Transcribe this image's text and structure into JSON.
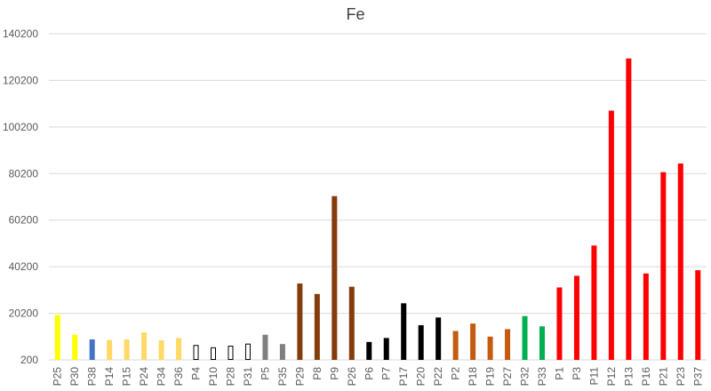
{
  "chart_data": {
    "type": "bar",
    "title": "Fe",
    "xlabel": "",
    "ylabel": "",
    "ylim": [
      200,
      140200
    ],
    "yticks": [
      200,
      20200,
      40200,
      60200,
      80200,
      100200,
      120200,
      140200
    ],
    "grid": true,
    "legend": "none",
    "categories": [
      "P25",
      "P30",
      "P38",
      "P14",
      "P15",
      "P24",
      "P34",
      "P36",
      "P4",
      "P10",
      "P28",
      "P31",
      "P5",
      "P35",
      "P29",
      "P8",
      "P9",
      "P26",
      "P6",
      "P7",
      "P17",
      "P20",
      "P22",
      "P2",
      "P18",
      "P19",
      "P27",
      "P32",
      "P33",
      "P1",
      "P3",
      "P11",
      "P12",
      "P13",
      "P16",
      "P21",
      "P23",
      "P37"
    ],
    "values": [
      19500,
      11000,
      9000,
      8800,
      9000,
      12000,
      8600,
      9600,
      6400,
      5400,
      6100,
      7000,
      11000,
      7000,
      33000,
      28500,
      70500,
      31600,
      7900,
      9600,
      24500,
      15100,
      18400,
      12600,
      15800,
      10200,
      13400,
      19000,
      14600,
      31300,
      36300,
      49300,
      107200,
      129600,
      37300,
      80800,
      84500,
      38700
    ],
    "colors": [
      "#ffff00",
      "#ffff00",
      "#4472c4",
      "#ffd966",
      "#ffd966",
      "#ffd966",
      "#ffd966",
      "#ffd966",
      "#ffffff",
      "#ffffff",
      "#ffffff",
      "#ffffff",
      "#7f7f7f",
      "#7f7f7f",
      "#843c0c",
      "#843c0c",
      "#843c0c",
      "#843c0c",
      "#000000",
      "#000000",
      "#000000",
      "#000000",
      "#000000",
      "#c55a11",
      "#c55a11",
      "#c55a11",
      "#c55a11",
      "#00b050",
      "#00b050",
      "#ff0000",
      "#ff0000",
      "#ff0000",
      "#ff0000",
      "#ff0000",
      "#ff0000",
      "#ff0000",
      "#ff0000",
      "#ff0000"
    ],
    "outlined": [
      "P4",
      "P10",
      "P28",
      "P31"
    ]
  }
}
